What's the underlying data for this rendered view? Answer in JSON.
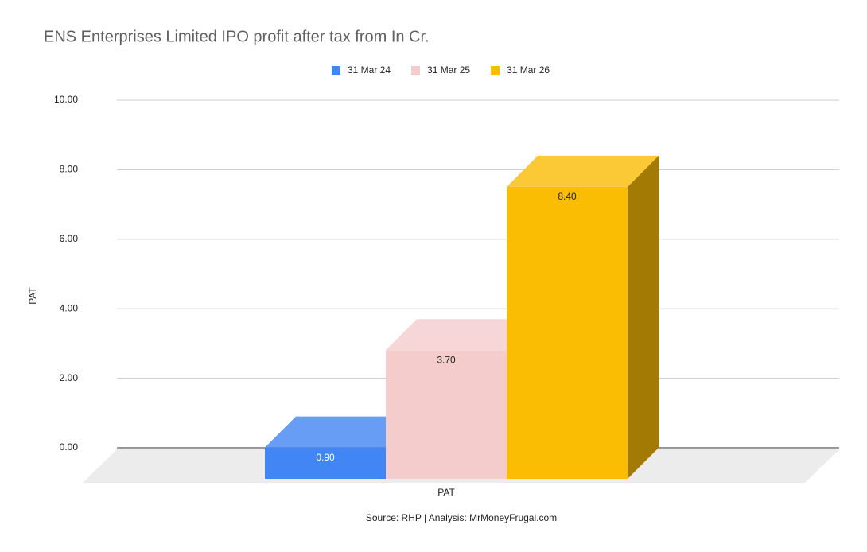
{
  "chart_data": {
    "type": "bar3d",
    "title": "ENS Enterprises Limited IPO profit after tax from In Cr.",
    "y_label": "PAT",
    "note": "Source: RHP | Analysis: MrMoneyFrugal.com",
    "categories": [
      "PAT"
    ],
    "series": [
      {
        "name": "31 Mar 24",
        "color": "#4285f4",
        "values": [
          0.9
        ],
        "value_labels": [
          "0.90"
        ]
      },
      {
        "name": "31 Mar 25",
        "color": "#f4cccc",
        "values": [
          3.7
        ],
        "value_labels": [
          "3.70"
        ]
      },
      {
        "name": "31 Mar 26",
        "color": "#fbbc04",
        "values": [
          8.4
        ],
        "value_labels": [
          "8.40"
        ]
      }
    ],
    "ylim": [
      0,
      10
    ],
    "yticks": [
      {
        "value": 0,
        "label": "0.00"
      },
      {
        "value": 2,
        "label": "2.00"
      },
      {
        "value": 4,
        "label": "4.00"
      },
      {
        "value": 6,
        "label": "6.00"
      },
      {
        "value": 8,
        "label": "8.00"
      },
      {
        "value": 10,
        "label": "10.00"
      }
    ],
    "grid": true,
    "legend": "top"
  }
}
